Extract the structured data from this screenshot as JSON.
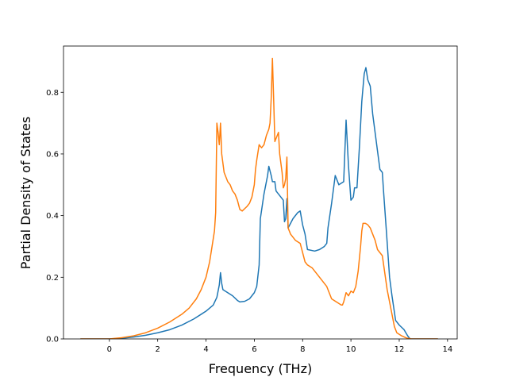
{
  "chart_data": {
    "type": "line",
    "title": "",
    "xlabel": "Frequency (THz)",
    "ylabel": "Partial Density of States",
    "xlim": [
      -1.9,
      14.4
    ],
    "ylim": [
      0,
      0.95
    ],
    "xticks": [
      0,
      2,
      4,
      6,
      8,
      10,
      12,
      14
    ],
    "yticks": [
      0.0,
      0.2,
      0.4,
      0.6,
      0.8
    ],
    "xtick_labels": [
      "0",
      "2",
      "4",
      "6",
      "8",
      "10",
      "12",
      "14"
    ],
    "ytick_labels": [
      "0.0",
      "0.2",
      "0.4",
      "0.6",
      "0.8"
    ],
    "grid": false,
    "legend": "none",
    "series": [
      {
        "color": "#1f77b4",
        "points": [
          [
            -1.2,
            0.0
          ],
          [
            0.0,
            0.0
          ],
          [
            0.5,
            0.002
          ],
          [
            1.0,
            0.006
          ],
          [
            1.5,
            0.012
          ],
          [
            2.0,
            0.02
          ],
          [
            2.5,
            0.03
          ],
          [
            3.0,
            0.045
          ],
          [
            3.5,
            0.065
          ],
          [
            4.0,
            0.09
          ],
          [
            4.3,
            0.11
          ],
          [
            4.45,
            0.135
          ],
          [
            4.55,
            0.175
          ],
          [
            4.6,
            0.215
          ],
          [
            4.65,
            0.18
          ],
          [
            4.7,
            0.16
          ],
          [
            4.9,
            0.15
          ],
          [
            5.1,
            0.14
          ],
          [
            5.3,
            0.125
          ],
          [
            5.4,
            0.12
          ],
          [
            5.6,
            0.122
          ],
          [
            5.8,
            0.13
          ],
          [
            6.0,
            0.15
          ],
          [
            6.1,
            0.17
          ],
          [
            6.2,
            0.24
          ],
          [
            6.25,
            0.39
          ],
          [
            6.4,
            0.47
          ],
          [
            6.55,
            0.53
          ],
          [
            6.6,
            0.56
          ],
          [
            6.7,
            0.53
          ],
          [
            6.75,
            0.51
          ],
          [
            6.85,
            0.51
          ],
          [
            6.9,
            0.48
          ],
          [
            7.0,
            0.47
          ],
          [
            7.1,
            0.46
          ],
          [
            7.2,
            0.45
          ],
          [
            7.25,
            0.38
          ],
          [
            7.3,
            0.39
          ],
          [
            7.35,
            0.455
          ],
          [
            7.4,
            0.36
          ],
          [
            7.5,
            0.375
          ],
          [
            7.6,
            0.39
          ],
          [
            7.8,
            0.41
          ],
          [
            7.9,
            0.415
          ],
          [
            8.0,
            0.37
          ],
          [
            8.1,
            0.34
          ],
          [
            8.2,
            0.29
          ],
          [
            8.5,
            0.285
          ],
          [
            8.7,
            0.29
          ],
          [
            8.9,
            0.3
          ],
          [
            9.0,
            0.31
          ],
          [
            9.05,
            0.36
          ],
          [
            9.2,
            0.44
          ],
          [
            9.3,
            0.5
          ],
          [
            9.35,
            0.53
          ],
          [
            9.5,
            0.5
          ],
          [
            9.7,
            0.51
          ],
          [
            9.8,
            0.71
          ],
          [
            9.9,
            0.56
          ],
          [
            10.0,
            0.45
          ],
          [
            10.1,
            0.46
          ],
          [
            10.15,
            0.49
          ],
          [
            10.25,
            0.49
          ],
          [
            10.35,
            0.62
          ],
          [
            10.45,
            0.77
          ],
          [
            10.55,
            0.86
          ],
          [
            10.62,
            0.88
          ],
          [
            10.7,
            0.84
          ],
          [
            10.8,
            0.82
          ],
          [
            10.9,
            0.73
          ],
          [
            11.0,
            0.67
          ],
          [
            11.1,
            0.61
          ],
          [
            11.2,
            0.55
          ],
          [
            11.3,
            0.54
          ],
          [
            11.35,
            0.48
          ],
          [
            11.45,
            0.37
          ],
          [
            11.6,
            0.2
          ],
          [
            11.7,
            0.14
          ],
          [
            11.85,
            0.06
          ],
          [
            12.0,
            0.045
          ],
          [
            12.2,
            0.03
          ],
          [
            12.35,
            0.01
          ],
          [
            12.45,
            0.0
          ],
          [
            13.6,
            0.0
          ]
        ]
      },
      {
        "color": "#ff7f0e",
        "points": [
          [
            -1.2,
            0.0
          ],
          [
            0.0,
            0.0
          ],
          [
            0.5,
            0.004
          ],
          [
            1.0,
            0.01
          ],
          [
            1.5,
            0.02
          ],
          [
            2.0,
            0.035
          ],
          [
            2.5,
            0.055
          ],
          [
            3.0,
            0.08
          ],
          [
            3.3,
            0.1
          ],
          [
            3.6,
            0.13
          ],
          [
            3.8,
            0.16
          ],
          [
            4.0,
            0.2
          ],
          [
            4.15,
            0.25
          ],
          [
            4.25,
            0.3
          ],
          [
            4.35,
            0.35
          ],
          [
            4.4,
            0.41
          ],
          [
            4.45,
            0.7
          ],
          [
            4.5,
            0.67
          ],
          [
            4.55,
            0.63
          ],
          [
            4.6,
            0.7
          ],
          [
            4.65,
            0.6
          ],
          [
            4.75,
            0.54
          ],
          [
            4.9,
            0.51
          ],
          [
            5.0,
            0.5
          ],
          [
            5.1,
            0.48
          ],
          [
            5.2,
            0.47
          ],
          [
            5.3,
            0.45
          ],
          [
            5.4,
            0.42
          ],
          [
            5.5,
            0.415
          ],
          [
            5.7,
            0.43
          ],
          [
            5.8,
            0.44
          ],
          [
            5.9,
            0.46
          ],
          [
            6.0,
            0.5
          ],
          [
            6.05,
            0.55
          ],
          [
            6.1,
            0.58
          ],
          [
            6.2,
            0.63
          ],
          [
            6.3,
            0.62
          ],
          [
            6.4,
            0.63
          ],
          [
            6.5,
            0.66
          ],
          [
            6.6,
            0.68
          ],
          [
            6.65,
            0.7
          ],
          [
            6.7,
            0.78
          ],
          [
            6.75,
            0.91
          ],
          [
            6.8,
            0.78
          ],
          [
            6.85,
            0.64
          ],
          [
            6.9,
            0.65
          ],
          [
            7.0,
            0.67
          ],
          [
            7.05,
            0.6
          ],
          [
            7.15,
            0.54
          ],
          [
            7.2,
            0.49
          ],
          [
            7.25,
            0.5
          ],
          [
            7.3,
            0.52
          ],
          [
            7.35,
            0.59
          ],
          [
            7.4,
            0.36
          ],
          [
            7.5,
            0.34
          ],
          [
            7.6,
            0.33
          ],
          [
            7.7,
            0.32
          ],
          [
            7.9,
            0.31
          ],
          [
            8.0,
            0.28
          ],
          [
            8.1,
            0.25
          ],
          [
            8.2,
            0.24
          ],
          [
            8.4,
            0.23
          ],
          [
            8.6,
            0.21
          ],
          [
            8.8,
            0.19
          ],
          [
            9.0,
            0.17
          ],
          [
            9.1,
            0.15
          ],
          [
            9.2,
            0.13
          ],
          [
            9.4,
            0.12
          ],
          [
            9.6,
            0.11
          ],
          [
            9.65,
            0.11
          ],
          [
            9.7,
            0.12
          ],
          [
            9.8,
            0.15
          ],
          [
            9.9,
            0.14
          ],
          [
            10.0,
            0.155
          ],
          [
            10.1,
            0.15
          ],
          [
            10.2,
            0.17
          ],
          [
            10.3,
            0.22
          ],
          [
            10.4,
            0.3
          ],
          [
            10.45,
            0.35
          ],
          [
            10.5,
            0.375
          ],
          [
            10.6,
            0.375
          ],
          [
            10.7,
            0.37
          ],
          [
            10.8,
            0.36
          ],
          [
            10.9,
            0.34
          ],
          [
            11.0,
            0.32
          ],
          [
            11.1,
            0.29
          ],
          [
            11.2,
            0.28
          ],
          [
            11.3,
            0.27
          ],
          [
            11.5,
            0.16
          ],
          [
            11.6,
            0.12
          ],
          [
            11.7,
            0.08
          ],
          [
            11.8,
            0.04
          ],
          [
            11.9,
            0.02
          ],
          [
            12.1,
            0.01
          ],
          [
            12.3,
            0.003
          ],
          [
            12.5,
            0.0
          ],
          [
            13.6,
            0.0
          ]
        ]
      }
    ]
  }
}
